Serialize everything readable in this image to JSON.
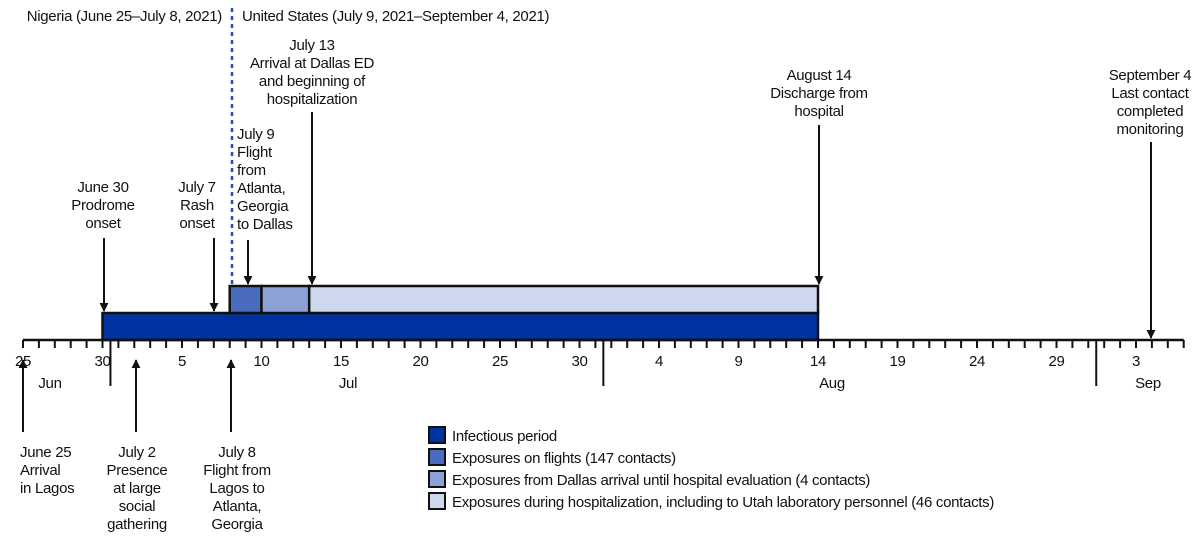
{
  "regions": {
    "nigeria": "Nigeria (June 25–July 8, 2021)",
    "united_states": "United States (July 9, 2021–September 4, 2021)",
    "divider_color": "#1f4fbf"
  },
  "chart_data": {
    "type": "timeline",
    "axis": {
      "start": "2021-06-25",
      "end": "2021-09-06",
      "tick_labels": [
        {
          "date": "2021-06-25",
          "label": "25"
        },
        {
          "date": "2021-06-30",
          "label": "30"
        },
        {
          "date": "2021-07-05",
          "label": "5"
        },
        {
          "date": "2021-07-10",
          "label": "10"
        },
        {
          "date": "2021-07-15",
          "label": "15"
        },
        {
          "date": "2021-07-20",
          "label": "20"
        },
        {
          "date": "2021-07-25",
          "label": "25"
        },
        {
          "date": "2021-07-30",
          "label": "30"
        },
        {
          "date": "2021-08-04",
          "label": "4"
        },
        {
          "date": "2021-08-09",
          "label": "9"
        },
        {
          "date": "2021-08-14",
          "label": "14"
        },
        {
          "date": "2021-08-19",
          "label": "19"
        },
        {
          "date": "2021-08-24",
          "label": "24"
        },
        {
          "date": "2021-08-29",
          "label": "29"
        },
        {
          "date": "2021-09-03",
          "label": "3"
        }
      ],
      "months": [
        {
          "label": "Jun",
          "date": "2021-06-27"
        },
        {
          "label": "Jul",
          "date": "2021-07-15"
        },
        {
          "label": "Aug",
          "date": "2021-08-14"
        },
        {
          "label": "Sep",
          "date": "2021-09-04"
        }
      ]
    },
    "periods": [
      {
        "key": "infectious",
        "label": "Infectious period",
        "start": "2021-06-30",
        "end": "2021-08-14",
        "color": "#0033a0"
      },
      {
        "key": "flights",
        "label": "Exposures on flights (147 contacts)",
        "start": "2021-07-08",
        "end": "2021-07-10",
        "color": "#4a6cbf"
      },
      {
        "key": "dallas",
        "label": "Exposures from Dallas arrival until hospital evaluation (4 contacts)",
        "start": "2021-07-10",
        "end": "2021-07-13",
        "color": "#8ca2d6"
      },
      {
        "key": "hospital",
        "label": "Exposures during hospitalization, including to Utah laboratory personnel (46 contacts)",
        "start": "2021-07-13",
        "end": "2021-08-14",
        "color": "#cdd7ee"
      }
    ],
    "events": [
      {
        "date": "2021-06-30",
        "lines": [
          "June 30",
          "Prodrome",
          "onset"
        ]
      },
      {
        "date": "2021-07-07",
        "lines": [
          "July 7",
          "Rash",
          "onset"
        ]
      },
      {
        "date": "2021-07-09",
        "lines": [
          "July 9",
          "Flight",
          "from",
          "Atlanta,",
          "Georgia",
          "to Dallas"
        ]
      },
      {
        "date": "2021-07-13",
        "lines": [
          "July 13",
          "Arrival at Dallas ED",
          "and beginning of",
          "hospitalization"
        ]
      },
      {
        "date": "2021-08-14",
        "lines": [
          "August 14",
          "Discharge from",
          "hospital"
        ]
      },
      {
        "date": "2021-09-04",
        "lines": [
          "September 4",
          "Last contact",
          "completed",
          "monitoring"
        ]
      },
      {
        "date": "2021-06-25",
        "lines": [
          "June 25",
          "Arrival",
          "in Lagos"
        ]
      },
      {
        "date": "2021-07-02",
        "lines": [
          "July 2",
          "Presence",
          "at large",
          "social",
          "gathering"
        ]
      },
      {
        "date": "2021-07-08",
        "lines": [
          "July 8",
          "Flight from",
          "Lagos to",
          "Atlanta,",
          "Georgia"
        ]
      }
    ]
  }
}
